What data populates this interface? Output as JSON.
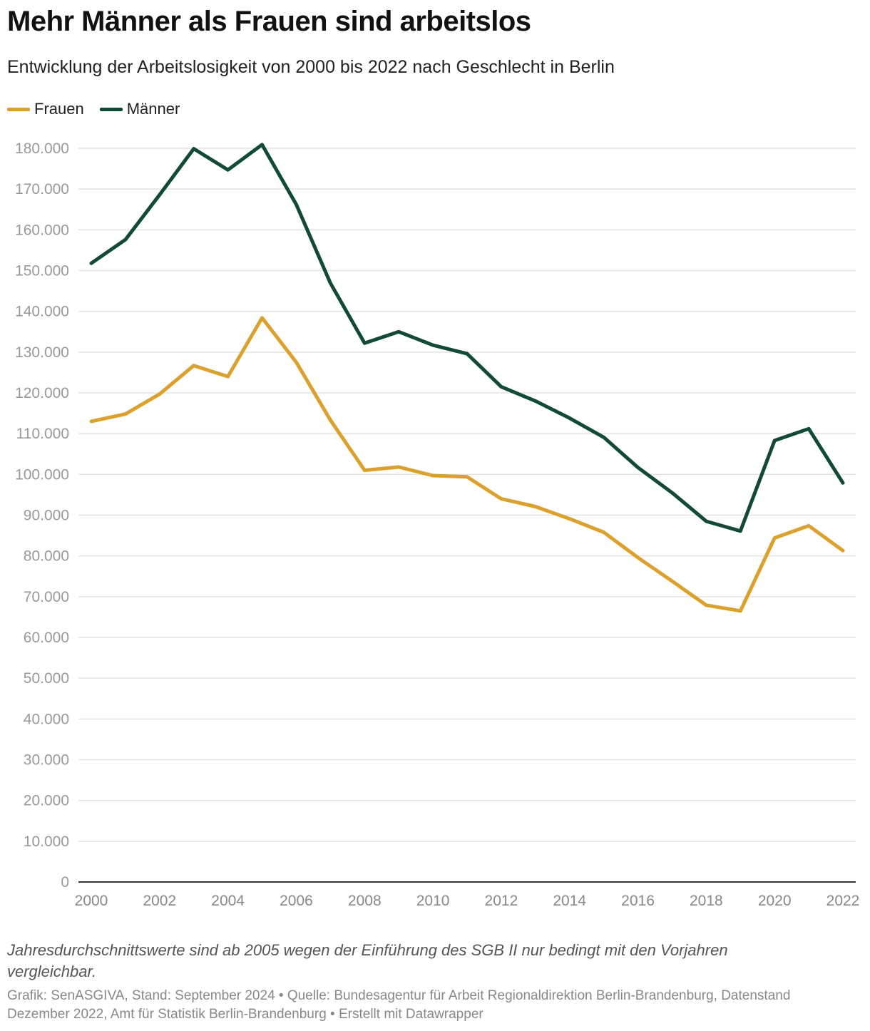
{
  "title": "Mehr Männer als Frauen sind arbeitslos",
  "subtitle": "Entwicklung der Arbeitslosigkeit von 2000 bis 2022 nach Geschlecht in Berlin",
  "legend": [
    {
      "label": "Frauen",
      "color": "#dca02d"
    },
    {
      "label": "Männer",
      "color": "#124a36"
    }
  ],
  "chart_data": {
    "type": "line",
    "title": "Mehr Männer als Frauen sind arbeitslos",
    "subtitle": "Entwicklung der Arbeitslosigkeit von 2000 bis 2022 nach Geschlecht in Berlin",
    "xlabel": "",
    "ylabel": "",
    "x": [
      2000,
      2001,
      2002,
      2003,
      2004,
      2005,
      2006,
      2007,
      2008,
      2009,
      2010,
      2011,
      2012,
      2013,
      2014,
      2015,
      2016,
      2017,
      2018,
      2019,
      2020,
      2021,
      2022
    ],
    "series": [
      {
        "name": "Frauen",
        "color": "#dca02d",
        "values": [
          113000,
          114800,
          119700,
          126700,
          124000,
          138400,
          127500,
          113300,
          101000,
          101800,
          99700,
          99400,
          94000,
          92100,
          89100,
          85800,
          79600,
          73800,
          67900,
          66500,
          84400,
          87400,
          81300
        ]
      },
      {
        "name": "Männer",
        "color": "#124a36",
        "values": [
          151800,
          157600,
          168600,
          179900,
          174700,
          180900,
          166200,
          146900,
          132200,
          135000,
          131700,
          129600,
          121500,
          118000,
          113800,
          109100,
          101700,
          95500,
          88500,
          86100,
          108300,
          111200,
          97900
        ]
      }
    ],
    "ylim": [
      0,
      180000
    ],
    "y_ticks": [
      0,
      10000,
      20000,
      30000,
      40000,
      50000,
      60000,
      70000,
      80000,
      90000,
      100000,
      110000,
      120000,
      130000,
      140000,
      150000,
      160000,
      170000,
      180000
    ],
    "y_tick_labels": [
      "0",
      "10.000",
      "20.000",
      "30.000",
      "40.000",
      "50.000",
      "60.000",
      "70.000",
      "80.000",
      "90.000",
      "100.000",
      "110.000",
      "120.000",
      "130.000",
      "140.000",
      "150.000",
      "160.000",
      "170.000",
      "180.000"
    ],
    "x_ticks": [
      2000,
      2002,
      2004,
      2006,
      2008,
      2010,
      2012,
      2014,
      2016,
      2018,
      2020,
      2022
    ],
    "x_tick_labels": [
      "2000",
      "2002",
      "2004",
      "2006",
      "2008",
      "2010",
      "2012",
      "2014",
      "2016",
      "2018",
      "2020",
      "2022"
    ],
    "grid": true,
    "legend_position": "top-left"
  },
  "note": "Jahresdurchschnittswerte sind ab 2005 wegen der Einführung des SGB II nur bedingt mit den Vorjahren vergleichbar.",
  "credits": "Grafik: SenASGIVA, Stand: September 2024 • Quelle: Bundesagentur für Arbeit Regionaldirektion Berlin-Brandenburg, Datenstand Dezember 2022, Amt für Statistik Berlin-Brandenburg • Erstellt mit Datawrapper"
}
